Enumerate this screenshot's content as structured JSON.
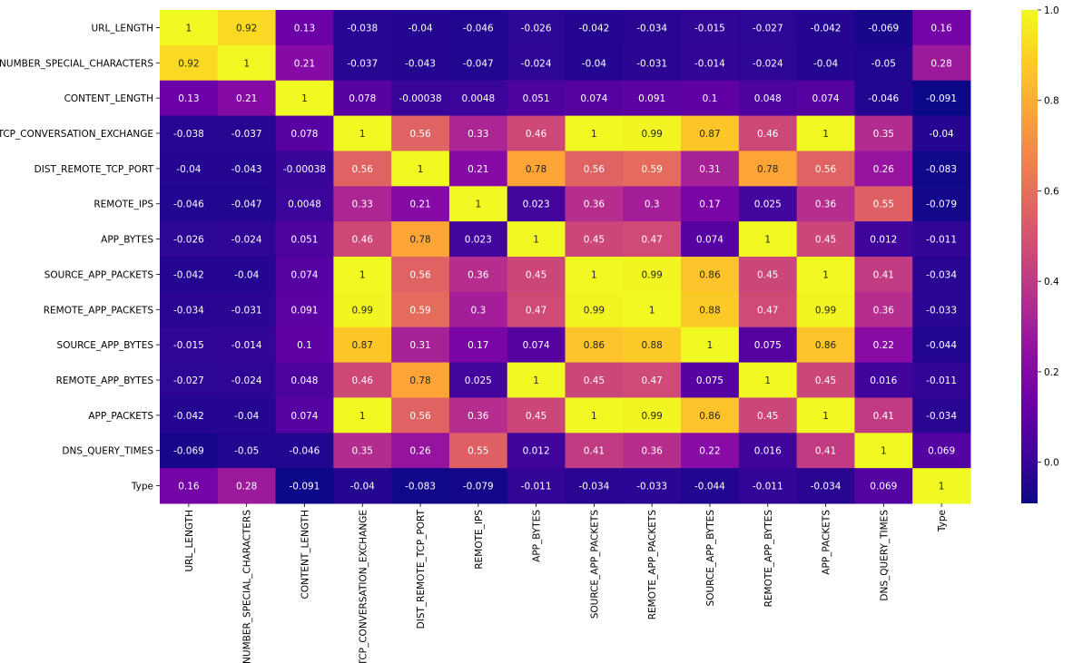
{
  "chart_data": {
    "type": "heatmap",
    "title": "",
    "xlabel": "",
    "ylabel": "",
    "colormap": "plasma",
    "labels": [
      "URL_LENGTH",
      "NUMBER_SPECIAL_CHARACTERS",
      "CONTENT_LENGTH",
      "TCP_CONVERSATION_EXCHANGE",
      "DIST_REMOTE_TCP_PORT",
      "REMOTE_IPS",
      "APP_BYTES",
      "SOURCE_APP_PACKETS",
      "REMOTE_APP_PACKETS",
      "SOURCE_APP_BYTES",
      "REMOTE_APP_BYTES",
      "APP_PACKETS",
      "DNS_QUERY_TIMES",
      "Type"
    ],
    "matrix": [
      [
        "1",
        "0.92",
        "0.13",
        "-0.038",
        "-0.04",
        "-0.046",
        "-0.026",
        "-0.042",
        "-0.034",
        "-0.015",
        "-0.027",
        "-0.042",
        "-0.069",
        "0.16"
      ],
      [
        "0.92",
        "1",
        "0.21",
        "-0.037",
        "-0.043",
        "-0.047",
        "-0.024",
        "-0.04",
        "-0.031",
        "-0.014",
        "-0.024",
        "-0.04",
        "-0.05",
        "0.28"
      ],
      [
        "0.13",
        "0.21",
        "1",
        "0.078",
        "-0.00038",
        "0.0048",
        "0.051",
        "0.074",
        "0.091",
        "0.1",
        "0.048",
        "0.074",
        "-0.046",
        "-0.091"
      ],
      [
        "-0.038",
        "-0.037",
        "0.078",
        "1",
        "0.56",
        "0.33",
        "0.46",
        "1",
        "0.99",
        "0.87",
        "0.46",
        "1",
        "0.35",
        "-0.04"
      ],
      [
        "-0.04",
        "-0.043",
        "-0.00038",
        "0.56",
        "1",
        "0.21",
        "0.78",
        "0.56",
        "0.59",
        "0.31",
        "0.78",
        "0.56",
        "0.26",
        "-0.083"
      ],
      [
        "-0.046",
        "-0.047",
        "0.0048",
        "0.33",
        "0.21",
        "1",
        "0.023",
        "0.36",
        "0.3",
        "0.17",
        "0.025",
        "0.36",
        "0.55",
        "-0.079"
      ],
      [
        "-0.026",
        "-0.024",
        "0.051",
        "0.46",
        "0.78",
        "0.023",
        "1",
        "0.45",
        "0.47",
        "0.074",
        "1",
        "0.45",
        "0.012",
        "-0.011"
      ],
      [
        "-0.042",
        "-0.04",
        "0.074",
        "1",
        "0.56",
        "0.36",
        "0.45",
        "1",
        "0.99",
        "0.86",
        "0.45",
        "1",
        "0.41",
        "-0.034"
      ],
      [
        "-0.034",
        "-0.031",
        "0.091",
        "0.99",
        "0.59",
        "0.3",
        "0.47",
        "0.99",
        "1",
        "0.88",
        "0.47",
        "0.99",
        "0.36",
        "-0.033"
      ],
      [
        "-0.015",
        "-0.014",
        "0.1",
        "0.87",
        "0.31",
        "0.17",
        "0.074",
        "0.86",
        "0.88",
        "1",
        "0.075",
        "0.86",
        "0.22",
        "-0.044"
      ],
      [
        "-0.027",
        "-0.024",
        "0.048",
        "0.46",
        "0.78",
        "0.025",
        "1",
        "0.45",
        "0.47",
        "0.075",
        "1",
        "0.45",
        "0.016",
        "-0.011"
      ],
      [
        "-0.042",
        "-0.04",
        "0.074",
        "1",
        "0.56",
        "0.36",
        "0.45",
        "1",
        "0.99",
        "0.86",
        "0.45",
        "1",
        "0.41",
        "-0.034"
      ],
      [
        "-0.069",
        "-0.05",
        "-0.046",
        "0.35",
        "0.26",
        "0.55",
        "0.012",
        "0.41",
        "0.36",
        "0.22",
        "0.016",
        "0.41",
        "1",
        "0.069"
      ],
      [
        "0.16",
        "0.28",
        "-0.091",
        "-0.04",
        "-0.083",
        "-0.079",
        "-0.011",
        "-0.034",
        "-0.033",
        "-0.044",
        "-0.011",
        "-0.034",
        "0.069",
        "1"
      ]
    ],
    "vmin": -0.091,
    "vmax": 1.0,
    "colorbar": {
      "ticks": [
        0.0,
        0.2,
        0.4,
        0.6,
        0.8,
        1.0
      ],
      "tick_labels": [
        "0.0",
        "0.2",
        "0.4",
        "0.6",
        "0.8",
        "1.0"
      ]
    },
    "grid": false,
    "legend": "colorbar-right"
  }
}
